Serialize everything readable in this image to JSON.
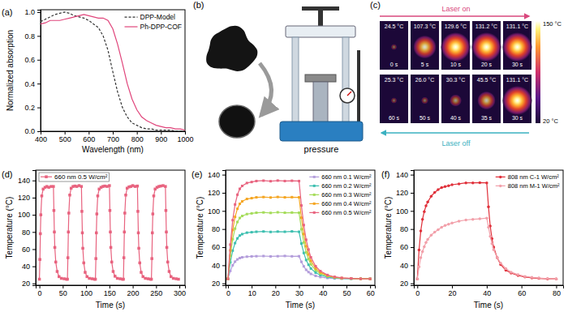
{
  "chart_data": [
    {
      "type": "line",
      "title": "(a)",
      "x_label": "Wavelength (nm)",
      "y_label": "Normalized absorption",
      "xlim": [
        400,
        1000
      ],
      "xticks": [
        400,
        500,
        600,
        700,
        800,
        900,
        1000
      ],
      "ylim": [
        0,
        1.02
      ],
      "yticks": [
        {
          "value": 0,
          "label": "0.0"
        },
        0.2,
        0.4,
        0.6,
        0.8,
        {
          "value": 1,
          "label": "1.0"
        }
      ],
      "legend": "upper right",
      "x": [
        400,
        420,
        440,
        460,
        480,
        500,
        520,
        540,
        560,
        580,
        600,
        620,
        640,
        660,
        680,
        700,
        720,
        740,
        760,
        780,
        800,
        820,
        840,
        860,
        880,
        900,
        920,
        940,
        960,
        980,
        1000
      ],
      "series": [
        {
          "name": "DPP-Model",
          "color": "#333333",
          "line_style": "dashed",
          "marker": "none",
          "values": [
            0.92,
            0.94,
            0.96,
            0.98,
            0.99,
            1.0,
            0.99,
            0.97,
            0.96,
            0.95,
            0.93,
            0.9,
            0.87,
            0.8,
            0.68,
            0.5,
            0.33,
            0.2,
            0.12,
            0.07,
            0.05,
            0.03,
            0.02,
            0.02,
            0.01,
            0.01,
            0.01,
            0.01,
            0.0,
            0.0,
            0.0
          ]
        },
        {
          "name": "Ph-DPP-COF",
          "color": "#e0457b",
          "line_style": "solid",
          "marker": "none",
          "values": [
            0.9,
            0.91,
            0.93,
            0.93,
            0.93,
            0.94,
            0.95,
            0.96,
            0.97,
            0.98,
            0.97,
            0.96,
            0.95,
            0.95,
            0.93,
            0.86,
            0.73,
            0.57,
            0.4,
            0.27,
            0.18,
            0.12,
            0.09,
            0.07,
            0.05,
            0.04,
            0.03,
            0.03,
            0.02,
            0.02,
            0.01
          ]
        }
      ]
    },
    {
      "type": "line",
      "title": "(d)",
      "x_label": "Time (s)",
      "y_label": "Temperature (°C)",
      "xlim": [
        -8,
        312
      ],
      "xticks": [
        0,
        50,
        100,
        150,
        200,
        250,
        300
      ],
      "ylim": [
        18,
        152
      ],
      "yticks": [
        20,
        40,
        60,
        80,
        100,
        120,
        140
      ],
      "legend": "upper left",
      "x": [
        0,
        1,
        2,
        3,
        5,
        8,
        12,
        16,
        20,
        25,
        30,
        31,
        32,
        33,
        35,
        38,
        42,
        47,
        53,
        58,
        60,
        61,
        62,
        63,
        65,
        68,
        72,
        76,
        80,
        85,
        90,
        91,
        92,
        93,
        95,
        98,
        102,
        107,
        113,
        118,
        120,
        121,
        122,
        123,
        125,
        128,
        132,
        136,
        140,
        145,
        150,
        151,
        152,
        153,
        155,
        158,
        162,
        167,
        173,
        178,
        180,
        181,
        182,
        183,
        185,
        188,
        192,
        196,
        200,
        205,
        210,
        211,
        212,
        213,
        215,
        218,
        222,
        227,
        233,
        238,
        240,
        241,
        242,
        243,
        245,
        248,
        252,
        256,
        260,
        265,
        270,
        271,
        272,
        273,
        275,
        278,
        282,
        287,
        293,
        298
      ],
      "series": [
        {
          "name": "660 nm 0.5 W/cm²",
          "color": "#e8637f",
          "line_style": "solid",
          "marker": "square",
          "values": [
            25,
            48,
            78,
            100,
            122,
            130,
            132,
            133,
            132,
            133,
            133,
            105,
            80,
            62,
            45,
            34,
            28,
            26,
            25.5,
            25,
            25,
            50,
            80,
            102,
            123,
            131,
            133,
            133.5,
            133,
            134,
            133,
            104,
            79,
            61,
            44,
            33,
            28,
            26,
            25.5,
            25,
            25,
            49,
            79,
            101,
            122,
            130,
            132,
            133,
            133.5,
            133,
            134,
            105,
            80,
            62,
            45,
            34,
            28.5,
            26,
            25.5,
            25,
            25,
            50,
            80,
            102,
            123,
            131,
            132.5,
            133,
            134,
            133,
            133.5,
            104,
            79,
            61,
            44,
            33,
            28,
            26,
            25.5,
            25,
            25,
            49,
            79,
            101,
            122,
            130,
            132,
            133,
            133.5,
            134,
            133,
            105,
            80,
            62,
            45,
            34,
            28,
            26,
            25.5,
            25
          ]
        }
      ]
    },
    {
      "type": "line",
      "title": "(e)",
      "x_label": "Time (s)",
      "y_label": "Temperature (°C)",
      "xlim": [
        -1,
        62
      ],
      "xticks": [
        0,
        10,
        20,
        30,
        40,
        50,
        60
      ],
      "ylim": [
        18,
        145
      ],
      "yticks": [
        20,
        40,
        60,
        80,
        100,
        120,
        140
      ],
      "legend": "upper right",
      "x": [
        0,
        1,
        2,
        3,
        4,
        5,
        6,
        8,
        10,
        12,
        15,
        18,
        21,
        24,
        27,
        30,
        31,
        32,
        33,
        34,
        35,
        37,
        39,
        42,
        45,
        48,
        52,
        56,
        60
      ],
      "series": [
        {
          "name": "660 nm 0.1 W/cm²",
          "color": "#b39ddb",
          "line_style": "solid",
          "marker": "square",
          "values": [
            25,
            33.8,
            40,
            44,
            46.5,
            48,
            48.8,
            49.5,
            49.8,
            50,
            50.2,
            49.8,
            50,
            50.3,
            49.9,
            50,
            43.8,
            38.8,
            35,
            32.5,
            30.5,
            28.3,
            27,
            26,
            25.5,
            25.3,
            25.1,
            25,
            25
          ]
        },
        {
          "name": "660 nm 0.2 W/cm²",
          "color": "#3dbfb0",
          "line_style": "solid",
          "marker": "square",
          "values": [
            25,
            43.2,
            56.2,
            64.5,
            69.7,
            72.8,
            74.4,
            76,
            76.5,
            77,
            77.3,
            76.8,
            77.2,
            77,
            77.4,
            77,
            64,
            53.6,
            45.8,
            40.6,
            36.4,
            31.8,
            29.2,
            27.1,
            26,
            25.5,
            25.3,
            25,
            25
          ]
        },
        {
          "name": "660 nm 0.3 W/cm²",
          "color": "#a5dc5a",
          "line_style": "solid",
          "marker": "square",
          "values": [
            25,
            50.6,
            68.8,
            80.5,
            87.8,
            92.2,
            94.4,
            96.5,
            97.3,
            98,
            98.3,
            97.8,
            98.5,
            98,
            98.2,
            98,
            79.8,
            65.2,
            54.2,
            46.9,
            41.1,
            34.5,
            30.8,
            27.9,
            26.5,
            25.7,
            25.4,
            25.1,
            25
          ]
        },
        {
          "name": "660 nm 0.4 W/cm²",
          "color": "#f5a623",
          "line_style": "solid",
          "marker": "square",
          "values": [
            25,
            56.5,
            79,
            93.4,
            102.4,
            107.8,
            110.5,
            113.2,
            114.1,
            115,
            115.3,
            114.8,
            115.4,
            115,
            115.2,
            115,
            92.5,
            74.5,
            61,
            52,
            44.8,
            36.7,
            32.2,
            28.6,
            26.8,
            25.9,
            25.5,
            25.1,
            25
          ]
        },
        {
          "name": "660 nm 0.5 W/cm²",
          "color": "#e8637f",
          "line_style": "solid",
          "marker": "square",
          "values": [
            25,
            62.8,
            89.8,
            107.1,
            117.9,
            124.4,
            127.6,
            130.8,
            131.9,
            133,
            133.4,
            132.8,
            133.5,
            133,
            133.3,
            133,
            106,
            84.4,
            68.2,
            57.4,
            48.8,
            39,
            33.6,
            29.3,
            27.2,
            26.1,
            25.5,
            25.1,
            25
          ]
        }
      ]
    },
    {
      "type": "line",
      "title": "(f)",
      "x_label": "Time (s)",
      "y_label": "Temperature (°C)",
      "xlim": [
        -2,
        84
      ],
      "xticks": [
        0,
        20,
        40,
        60,
        80
      ],
      "ylim": [
        18,
        145
      ],
      "yticks": [
        20,
        40,
        60,
        80,
        100,
        120,
        140
      ],
      "legend": "upper right",
      "x": [
        0,
        1,
        2,
        3,
        4,
        5,
        6,
        8,
        10,
        12,
        14,
        16,
        18,
        20,
        24,
        28,
        32,
        36,
        40,
        41,
        42,
        43,
        44,
        46,
        48,
        51,
        54,
        58,
        62,
        66,
        70,
        75,
        80
      ],
      "series": [
        {
          "name": "808 nm C-1 W/cm²",
          "color": "#e0303a",
          "line_style": "solid",
          "marker": "circle",
          "values": [
            25,
            56.8,
            78,
            90.7,
            99.2,
            105.6,
            109.8,
            116.2,
            120.4,
            123.6,
            125.7,
            126.8,
            127.8,
            128.9,
            129.9,
            131,
            131,
            131.2,
            131,
            104.5,
            83.3,
            69.5,
            60,
            48.3,
            40.9,
            34.5,
            31.4,
            28.7,
            27.1,
            26.1,
            25.5,
            25,
            25
          ]
        },
        {
          "name": "808 nm M-1 W/cm²",
          "color": "#f2a0aa",
          "line_style": "solid",
          "marker": "circle",
          "values": [
            25,
            38.4,
            48.5,
            55.2,
            60.5,
            65.2,
            68.6,
            73.2,
            76.6,
            79.3,
            82,
            84,
            85.3,
            86.6,
            88.7,
            90,
            90.7,
            91.3,
            92,
            82,
            71.9,
            63.9,
            57.2,
            48.5,
            42.4,
            36.4,
            32.4,
            29.7,
            27.7,
            26.7,
            26,
            25.3,
            25
          ]
        }
      ]
    }
  ],
  "illustration": {
    "title": "(b)",
    "caption": "pressure"
  },
  "thermal_images": {
    "title": "(c)",
    "laser_on": "Laser on",
    "laser_off": "Laser off",
    "scale_max": "150 °C",
    "scale_min": "20 °C",
    "frames": [
      {
        "temperature": "24.5 °C",
        "time": "0 s"
      },
      {
        "temperature": "107.3 °C",
        "time": "5 s"
      },
      {
        "temperature": "129.6 °C",
        "time": "10 s"
      },
      {
        "temperature": "131.2 °C",
        "time": "20 s"
      },
      {
        "temperature": "131.1 °C",
        "time": "30 s"
      },
      {
        "temperature": "25.3 °C",
        "time": "60 s"
      },
      {
        "temperature": "26.0 °C",
        "time": "50 s"
      },
      {
        "temperature": "30.3 °C",
        "time": "40 s"
      },
      {
        "temperature": "45.5 °C",
        "time": "35 s"
      },
      {
        "temperature": "131.1 °C",
        "time": "30 s"
      }
    ]
  }
}
